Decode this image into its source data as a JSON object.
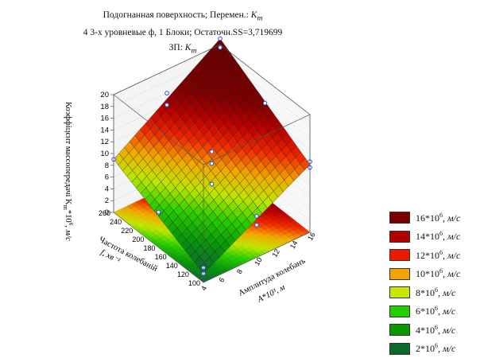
{
  "title": {
    "line1": "Подогнанная поверхность; Перемен.: ",
    "line1_var": "K",
    "line1_sub": "m",
    "line2": "4 3-х уровневые ф, 1 Блоки; Остаточн.SS=3,719699",
    "line3": "ЗП: ",
    "line3_var": "K",
    "line3_sub": "m"
  },
  "chart_data": {
    "type": "surface",
    "z_axis": {
      "label": "Коэффіцєнт массопередачі K",
      "label_sub": "m",
      "label_tail": "*10",
      "label_sup": "6",
      "label_unit": ", м/с",
      "ticks": [
        "0",
        "2",
        "4",
        "6",
        "8",
        "10",
        "12",
        "14",
        "16",
        "18",
        "20"
      ],
      "range": [
        0,
        20
      ]
    },
    "x_axis": {
      "label": "Амплитуда колебанъ",
      "label2": "A*10³, м",
      "ticks": [
        "4",
        "6",
        "8",
        "10",
        "12",
        "14",
        "16"
      ],
      "range": [
        4,
        16
      ]
    },
    "y_axis": {
      "label": "Частота колебаній",
      "label2": "f, хв⁻¹",
      "ticks": [
        "100",
        "120",
        "140",
        "160",
        "180",
        "200",
        "220",
        "240",
        "260"
      ],
      "range": [
        100,
        260
      ]
    },
    "surface_corners": {
      "A4_f100": 1.5,
      "A16_f100": 11.5,
      "A4_f260": 9,
      "A16_f260": 21
    },
    "points": [
      {
        "A": 4,
        "f": 100,
        "K": 1.5
      },
      {
        "A": 4,
        "f": 100,
        "K": 2.5
      },
      {
        "A": 10,
        "f": 100,
        "K": 5.5
      },
      {
        "A": 10,
        "f": 100,
        "K": 7
      },
      {
        "A": 16,
        "f": 100,
        "K": 12
      },
      {
        "A": 16,
        "f": 100,
        "K": 11
      },
      {
        "A": 4,
        "f": 180,
        "K": 6
      },
      {
        "A": 16,
        "f": 180,
        "K": 16
      },
      {
        "A": 10,
        "f": 180,
        "K": 12
      },
      {
        "A": 10,
        "f": 180,
        "K": 10
      },
      {
        "A": 4,
        "f": 260,
        "K": 9
      },
      {
        "A": 10,
        "f": 260,
        "K": 14
      },
      {
        "A": 10,
        "f": 260,
        "K": 16
      },
      {
        "A": 16,
        "f": 260,
        "K": 21
      },
      {
        "A": 16,
        "f": 260,
        "K": 19.5
      },
      {
        "A": 10,
        "f": 180,
        "K": 6.5
      }
    ],
    "legend": {
      "placement": "right",
      "unit": "м/с",
      "entries": [
        {
          "label": "16*10",
          "sup": "6",
          "color": "#7a0000"
        },
        {
          "label": "14*10",
          "sup": "6",
          "color": "#b00000"
        },
        {
          "label": "12*10",
          "sup": "6",
          "color": "#ee1a00"
        },
        {
          "label": "10*10",
          "sup": "6",
          "color": "#f2a400"
        },
        {
          "label": "8*10",
          "sup": "6",
          "color": "#c9e800"
        },
        {
          "label": "6*10",
          "sup": "6",
          "color": "#22d000"
        },
        {
          "label": "4*10",
          "sup": "6",
          "color": "#0a9a00"
        },
        {
          "label": "2*10",
          "sup": "6",
          "color": "#0b6b2c"
        }
      ]
    }
  }
}
